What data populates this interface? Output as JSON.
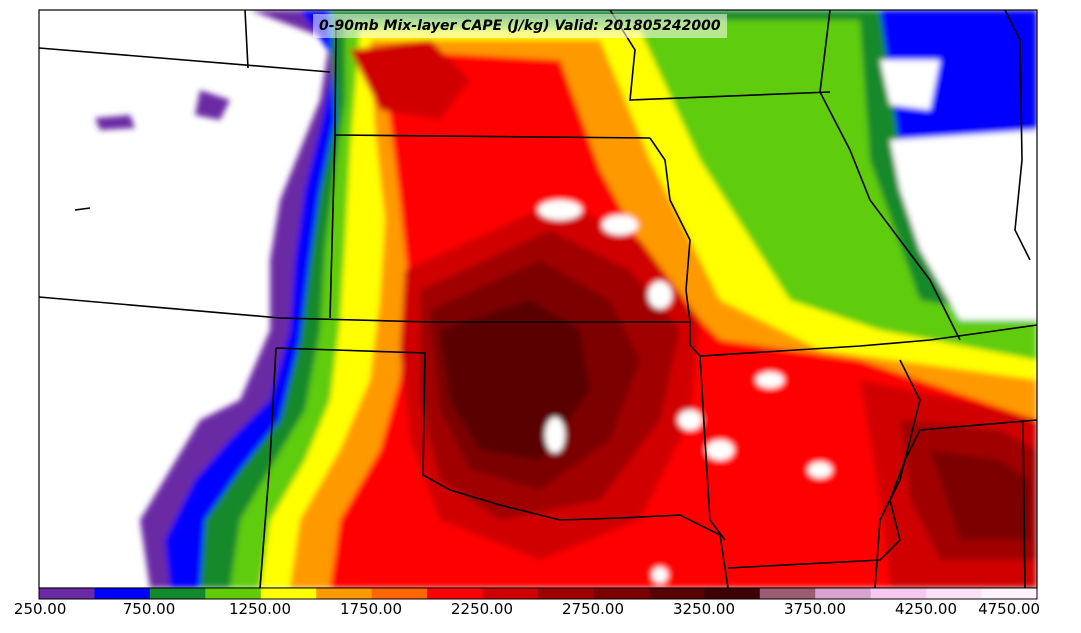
{
  "title": "0-90mb Mix-layer CAPE (J/kg) Valid: 201805242000",
  "colorbar": {
    "tick_labels": [
      "250.00",
      "750.00",
      "1250.00",
      "1750.00",
      "2250.00",
      "2750.00",
      "3250.00",
      "3750.00",
      "4250.00",
      "4750.00"
    ],
    "colors": [
      "#6a2aa4",
      "#0000ff",
      "#12892c",
      "#5fcc07",
      "#ffff00",
      "#ff9900",
      "#ff6600",
      "#ff0000",
      "#d10000",
      "#a10000",
      "#7d0000",
      "#5a0000",
      "#3e0000",
      "#9b5b73",
      "#d8a4cf",
      "#f6c8f0",
      "#fbe2f8",
      "#fff2fc"
    ]
  },
  "map": {
    "region": "Central United States",
    "features": [
      "state-borders",
      "cape-contours"
    ]
  }
}
